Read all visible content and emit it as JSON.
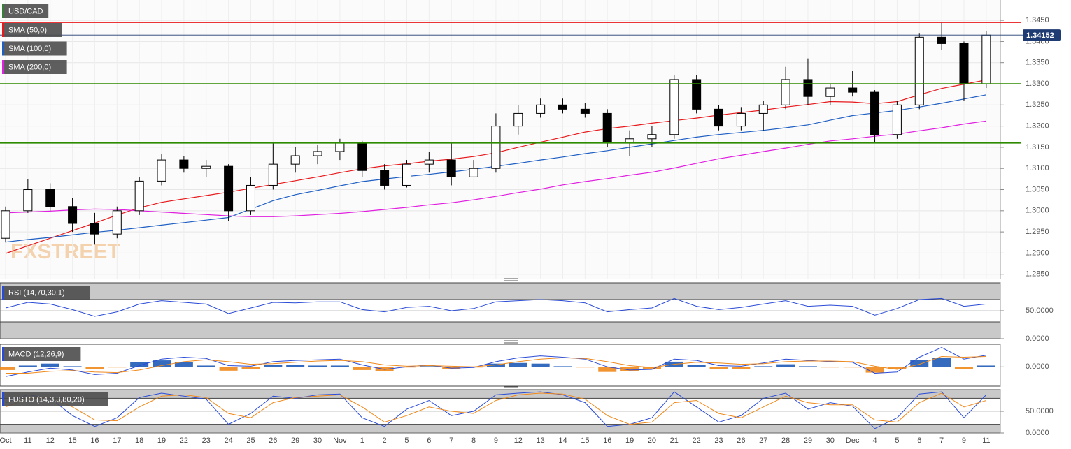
{
  "chart_data": [
    {
      "type": "candlestick",
      "title": "USD/CAD",
      "watermark": "FXSTREET",
      "categories": [
        "Oct",
        "11",
        "12",
        "15",
        "16",
        "17",
        "18",
        "19",
        "22",
        "23",
        "24",
        "25",
        "26",
        "29",
        "30",
        "Nov",
        "1",
        "2",
        "5",
        "6",
        "7",
        "8",
        "9",
        "12",
        "13",
        "14",
        "15",
        "16",
        "19",
        "20",
        "21",
        "22",
        "23",
        "26",
        "27",
        "28",
        "29",
        "30",
        "Dec",
        "4",
        "5",
        "6",
        "7",
        "9",
        "11"
      ],
      "open": [
        1.2935,
        1.3,
        1.305,
        1.301,
        1.297,
        1.2945,
        1.3,
        1.307,
        1.312,
        1.31,
        1.3105,
        1.3,
        1.306,
        1.311,
        1.313,
        1.314,
        1.316,
        1.3095,
        1.306,
        1.311,
        1.312,
        1.308,
        1.31,
        1.32,
        1.323,
        1.325,
        1.324,
        1.323,
        1.316,
        1.317,
        1.318,
        1.331,
        1.324,
        1.32,
        1.323,
        1.325,
        1.331,
        1.327,
        1.329,
        1.328,
        1.318,
        1.325,
        1.341,
        1.3395,
        1.33
      ],
      "high": [
        1.301,
        1.3075,
        1.3065,
        1.303,
        1.2995,
        1.301,
        1.308,
        1.3135,
        1.313,
        1.312,
        1.311,
        1.308,
        1.316,
        1.315,
        1.3155,
        1.317,
        1.3165,
        1.311,
        1.312,
        1.314,
        1.316,
        1.312,
        1.323,
        1.325,
        1.3265,
        1.3265,
        1.3255,
        1.324,
        1.319,
        1.32,
        1.332,
        1.332,
        1.325,
        1.3245,
        1.326,
        1.334,
        1.336,
        1.33,
        1.333,
        1.3285,
        1.326,
        1.342,
        1.3445,
        1.34,
        1.3425
      ],
      "low": [
        1.2925,
        1.2995,
        1.3,
        1.295,
        1.292,
        1.2935,
        1.299,
        1.306,
        1.309,
        1.308,
        1.2975,
        1.299,
        1.305,
        1.309,
        1.311,
        1.312,
        1.308,
        1.305,
        1.3055,
        1.309,
        1.306,
        1.308,
        1.309,
        1.318,
        1.322,
        1.323,
        1.322,
        1.315,
        1.313,
        1.315,
        1.317,
        1.323,
        1.319,
        1.319,
        1.319,
        1.324,
        1.325,
        1.325,
        1.327,
        1.316,
        1.317,
        1.324,
        1.338,
        1.326,
        1.329
      ],
      "close": [
        1.3,
        1.305,
        1.301,
        1.297,
        1.2945,
        1.3,
        1.307,
        1.312,
        1.31,
        1.3105,
        1.3,
        1.306,
        1.311,
        1.313,
        1.314,
        1.316,
        1.3095,
        1.306,
        1.311,
        1.312,
        1.308,
        1.31,
        1.32,
        1.323,
        1.325,
        1.324,
        1.323,
        1.316,
        1.317,
        1.318,
        1.331,
        1.324,
        1.32,
        1.323,
        1.325,
        1.331,
        1.327,
        1.329,
        1.328,
        1.318,
        1.325,
        1.341,
        1.3395,
        1.33,
        1.3415
      ],
      "series": [
        {
          "name": "SMA (50,0)",
          "color": "#e8191c",
          "values": [
            1.2899,
            1.2917,
            1.2935,
            1.2953,
            1.2971,
            1.299,
            1.3007,
            1.302,
            1.3028,
            1.3036,
            1.3044,
            1.3053,
            1.3062,
            1.3071,
            1.308,
            1.309,
            1.3099,
            1.3106,
            1.3111,
            1.3117,
            1.3122,
            1.3128,
            1.3137,
            1.315,
            1.3162,
            1.3174,
            1.3186,
            1.3194,
            1.32,
            1.3207,
            1.3213,
            1.3219,
            1.3226,
            1.3232,
            1.3238,
            1.3245,
            1.3251,
            1.3258,
            1.3257,
            1.3253,
            1.3258,
            1.3274,
            1.3289,
            1.3299,
            1.3309
          ]
        },
        {
          "name": "SMA (100,0)",
          "color": "#1f5fc4",
          "values": [
            1.2926,
            1.2932,
            1.2937,
            1.2943,
            1.2949,
            1.2954,
            1.296,
            1.2966,
            1.2972,
            1.2978,
            1.2984,
            1.3004,
            1.3024,
            1.3038,
            1.3048,
            1.3059,
            1.3069,
            1.3075,
            1.3081,
            1.3086,
            1.3092,
            1.3098,
            1.3105,
            1.3112,
            1.312,
            1.3127,
            1.3135,
            1.3142,
            1.315,
            1.3158,
            1.3166,
            1.3174,
            1.318,
            1.3185,
            1.319,
            1.3196,
            1.3203,
            1.3214,
            1.3225,
            1.3231,
            1.3237,
            1.3245,
            1.3254,
            1.3264,
            1.3274
          ]
        },
        {
          "name": "SMA (200,0)",
          "color": "#e020e0",
          "values": [
            1.2995,
            1.2997,
            1.2999,
            1.3002,
            1.3004,
            1.3003,
            1.3,
            1.2997,
            1.2994,
            1.2991,
            1.2988,
            1.2986,
            1.2986,
            1.2988,
            1.2991,
            1.2994,
            1.2998,
            1.3003,
            1.3008,
            1.3014,
            1.3019,
            1.3026,
            1.3034,
            1.3043,
            1.3051,
            1.3061,
            1.3069,
            1.3076,
            1.3084,
            1.3091,
            1.3101,
            1.3112,
            1.3123,
            1.3131,
            1.314,
            1.3148,
            1.3157,
            1.3165,
            1.317,
            1.3176,
            1.3181,
            1.3189,
            1.3196,
            1.3205,
            1.3212
          ]
        }
      ],
      "title_color": "#3a7d3a",
      "hlines": [
        {
          "value": 1.3445,
          "color": "#e8191c"
        },
        {
          "value": 1.33,
          "color": "#2e8b00"
        },
        {
          "value": 1.316,
          "color": "#2e8b00"
        }
      ],
      "last_price": 1.34152,
      "ylim": [
        1.2838,
        1.3498
      ],
      "yticks": [
        {
          "value": 1.285,
          "label": "1.2850"
        },
        {
          "value": 1.29,
          "label": "1.2900"
        },
        {
          "value": 1.295,
          "label": "1.2950"
        },
        {
          "value": 1.3,
          "label": "1.3000"
        },
        {
          "value": 1.305,
          "label": "1.3050"
        },
        {
          "value": 1.31,
          "label": "1.3100"
        },
        {
          "value": 1.315,
          "label": "1.3150"
        },
        {
          "value": 1.32,
          "label": "1.3200"
        },
        {
          "value": 1.325,
          "label": "1.3250"
        },
        {
          "value": 1.33,
          "label": "1.3300"
        },
        {
          "value": 1.335,
          "label": "1.3350"
        },
        {
          "value": 1.34,
          "label": "1.3400"
        },
        {
          "value": 1.345,
          "label": "1.3450"
        }
      ],
      "grid": true
    },
    {
      "type": "line",
      "title": "RSI (14,70,30,1)",
      "upper": 70,
      "lower": 30,
      "series": [
        {
          "color": "#2a4bd7",
          "values": [
            55,
            65,
            62,
            52,
            40,
            48,
            62,
            68,
            65,
            62,
            45,
            55,
            65,
            64,
            66,
            66,
            52,
            48,
            56,
            58,
            50,
            54,
            66,
            68,
            70,
            68,
            64,
            48,
            52,
            55,
            72,
            58,
            52,
            56,
            62,
            68,
            58,
            60,
            58,
            42,
            54,
            70,
            72,
            58,
            62
          ]
        }
      ],
      "ylim": [
        0,
        100
      ],
      "yticks": [
        {
          "value": 50,
          "label": "50.0000"
        },
        {
          "value": 0,
          "label": "0.0000"
        }
      ]
    },
    {
      "type": "macd",
      "title": "MACD (12,26,9)",
      "series": [
        {
          "color": "#2a4bd7",
          "values": [
            -0.0015,
            -0.0008,
            -0.0002,
            -0.0005,
            -0.0012,
            -0.001,
            0.0002,
            0.0012,
            0.0015,
            0.0013,
            0.0002,
            0.0001,
            0.0008,
            0.001,
            0.0011,
            0.0012,
            0.0003,
            -0.0004,
            0.0,
            0.0003,
            -0.0002,
            -0.0001,
            0.0008,
            0.0014,
            0.0017,
            0.0015,
            0.0012,
            0.0,
            -0.0005,
            -0.0004,
            0.0012,
            0.001,
            0.0002,
            0.0001,
            0.0006,
            0.0012,
            0.001,
            0.0008,
            0.0007,
            -0.001,
            -0.0008,
            0.0015,
            0.003,
            0.0012,
            0.0018
          ]
        },
        {
          "color": "#f08a1c",
          "values": [
            -0.001,
            -0.001,
            -0.0007,
            -0.0006,
            -0.0008,
            -0.0009,
            -0.0005,
            0.0002,
            0.0008,
            0.0011,
            0.0008,
            0.0004,
            0.0005,
            0.0007,
            0.0009,
            0.001,
            0.0008,
            0.0003,
            0.0001,
            0.0002,
            0.0001,
            0.0,
            0.0003,
            0.0008,
            0.0012,
            0.0014,
            0.0013,
            0.0008,
            0.0002,
            -0.0001,
            0.0004,
            0.0007,
            0.0006,
            0.0004,
            0.0005,
            0.0008,
            0.0009,
            0.0009,
            0.0008,
            0.0001,
            -0.0004,
            0.0004,
            0.0016,
            0.0015,
            0.0016
          ]
        }
      ],
      "histogram": {
        "colors": [
          "#1e5bb8",
          "#f08a1c"
        ],
        "values": [
          -0.0005,
          0.0002,
          0.0005,
          0.0001,
          -0.0004,
          -0.0001,
          0.0007,
          0.001,
          0.0007,
          0.0002,
          -0.0006,
          -0.0003,
          0.0003,
          0.0003,
          0.0002,
          0.0002,
          -0.0005,
          -0.0007,
          -0.0001,
          0.0001,
          -0.0003,
          -0.0001,
          0.0005,
          0.0006,
          0.0005,
          0.0001,
          -0.0001,
          -0.0008,
          -0.0007,
          -0.0003,
          0.0008,
          0.0003,
          -0.0004,
          -0.0003,
          0.0001,
          0.0004,
          0.0001,
          -0.0001,
          -0.0001,
          -0.0009,
          -0.0004,
          0.0011,
          0.0014,
          -0.0003,
          0.0002
        ]
      },
      "ylim": [
        -0.003,
        0.0035
      ],
      "yticks": [
        {
          "value": 0,
          "label": "0.0000"
        }
      ]
    },
    {
      "type": "line",
      "title": "FUSTO (14,3,3,80,20)",
      "upper": 80,
      "lower": 20,
      "series": [
        {
          "color": "#2a4bd7",
          "values": [
            70,
            88,
            80,
            40,
            15,
            35,
            82,
            92,
            85,
            78,
            20,
            45,
            85,
            80,
            88,
            90,
            35,
            15,
            55,
            75,
            40,
            50,
            88,
            92,
            95,
            88,
            70,
            15,
            20,
            35,
            95,
            60,
            25,
            40,
            80,
            92,
            55,
            70,
            62,
            10,
            35,
            90,
            95,
            35,
            88
          ]
        },
        {
          "color": "#f08a1c",
          "values": [
            60,
            80,
            82,
            60,
            30,
            28,
            60,
            85,
            88,
            82,
            45,
            35,
            70,
            82,
            85,
            88,
            60,
            25,
            40,
            60,
            50,
            45,
            75,
            88,
            92,
            90,
            78,
            40,
            20,
            25,
            70,
            75,
            45,
            35,
            60,
            85,
            70,
            65,
            65,
            30,
            25,
            70,
            92,
            60,
            75
          ]
        }
      ],
      "ylim": [
        0,
        100
      ],
      "yticks": [
        {
          "value": 50,
          "label": "50.0000"
        },
        {
          "value": 0,
          "label": "0.0000"
        }
      ]
    }
  ]
}
